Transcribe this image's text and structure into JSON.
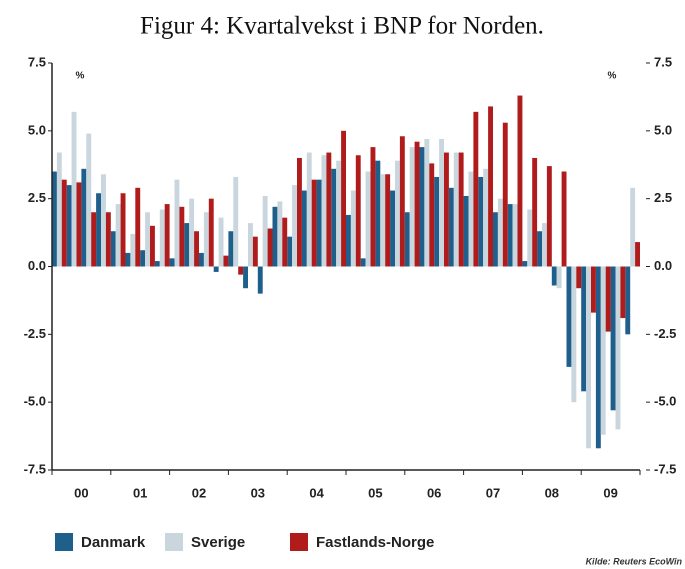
{
  "chart_data": {
    "type": "bar",
    "title": "Figur 4: Kvartalvekst i BNP for Norden.",
    "annotations": [
      "%",
      "%"
    ],
    "source": "Kilde: Reuters EcoWin",
    "categories": [
      null,
      "00",
      null,
      null,
      null,
      "01",
      null,
      null,
      null,
      "02",
      null,
      null,
      null,
      "03",
      null,
      null,
      null,
      "04",
      null,
      null,
      null,
      "05",
      null,
      null,
      null,
      "06",
      null,
      null,
      null,
      "07",
      null,
      null,
      null,
      "08",
      null,
      null,
      null,
      "09",
      null,
      null
    ],
    "series": [
      {
        "name": "Danmark",
        "color": "#1f5f8b",
        "values": [
          3.5,
          3.0,
          3.6,
          2.7,
          1.3,
          0.5,
          0.6,
          0.2,
          0.3,
          1.6,
          0.5,
          -0.2,
          1.3,
          -0.8,
          -1.0,
          2.2,
          1.1,
          2.8,
          3.2,
          3.6,
          1.9,
          0.3,
          3.9,
          2.8,
          2.0,
          4.4,
          3.3,
          2.9,
          2.6,
          3.3,
          2.0,
          2.3,
          0.2,
          1.3,
          -0.7,
          -3.7,
          -4.6,
          -6.7,
          -5.3,
          -2.5
        ]
      },
      {
        "name": "Sverige",
        "color": "#c9d6de",
        "values": [
          4.2,
          5.7,
          4.9,
          3.4,
          2.3,
          1.2,
          2.0,
          2.1,
          3.2,
          2.5,
          2.0,
          1.8,
          3.3,
          1.6,
          2.6,
          2.4,
          3.0,
          4.2,
          4.1,
          3.9,
          2.8,
          3.5,
          3.4,
          3.9,
          4.4,
          4.7,
          4.7,
          4.2,
          3.5,
          3.6,
          2.5,
          2.3,
          2.1,
          1.6,
          -0.8,
          -5.0,
          -6.7,
          -6.2,
          -6.0,
          2.9
        ]
      },
      {
        "name": "Fastlands-Norge",
        "color": "#b01c1c",
        "values": [
          3.2,
          3.1,
          2.0,
          2.0,
          2.7,
          2.9,
          1.5,
          2.3,
          2.2,
          1.3,
          2.5,
          0.4,
          -0.3,
          1.1,
          1.4,
          1.8,
          4.0,
          3.2,
          4.2,
          5.0,
          4.1,
          4.4,
          3.4,
          4.8,
          4.6,
          3.8,
          4.2,
          4.2,
          5.7,
          5.9,
          5.3,
          6.3,
          4.0,
          3.7,
          3.5,
          -0.8,
          -1.7,
          -2.4,
          -1.9,
          0.9
        ]
      }
    ],
    "ylim": [
      -7.5,
      7.5
    ],
    "yticks": [
      -7.5,
      {
        "value": -5,
        "label": "-5.0"
      },
      -2.5,
      {
        "value": 0,
        "label": "0.0"
      },
      2.5,
      {
        "value": 5,
        "label": "5.0"
      },
      7.5
    ],
    "y2lim": [
      -7.5,
      7.5
    ],
    "y2ticks": [
      -7.5,
      {
        "value": -5,
        "label": "-5.0"
      },
      -2.5,
      {
        "value": 0,
        "label": "0.0"
      },
      2.5,
      {
        "value": 5,
        "label": "5.0"
      },
      7.5
    ],
    "legend": "bottom"
  }
}
